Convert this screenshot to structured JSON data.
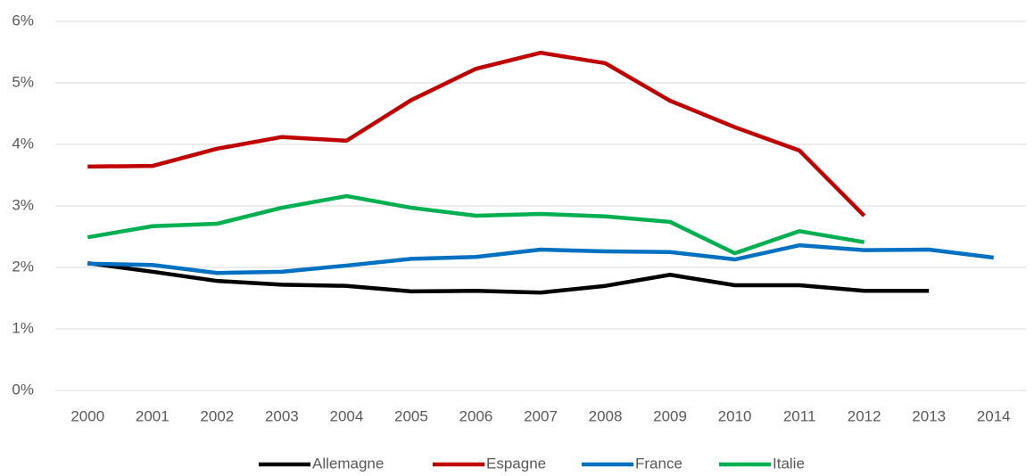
{
  "chart_data": {
    "type": "line",
    "categories": [
      "2000",
      "2001",
      "2002",
      "2003",
      "2004",
      "2005",
      "2006",
      "2007",
      "2008",
      "2009",
      "2010",
      "2011",
      "2012",
      "2013",
      "2014"
    ],
    "series": [
      {
        "name": "Allemagne",
        "color": "#000000",
        "values": [
          2.07,
          1.93,
          1.78,
          1.72,
          1.7,
          1.61,
          1.62,
          1.59,
          1.7,
          1.88,
          1.71,
          1.71,
          1.62,
          1.62,
          null
        ]
      },
      {
        "name": "Espagne",
        "color": "#c00000",
        "values": [
          3.64,
          3.65,
          3.93,
          4.12,
          4.06,
          4.72,
          5.23,
          5.49,
          5.32,
          4.71,
          4.28,
          3.9,
          2.84,
          null,
          null
        ]
      },
      {
        "name": "France",
        "color": "#0070c0",
        "values": [
          2.06,
          2.04,
          1.91,
          1.93,
          2.03,
          2.14,
          2.17,
          2.29,
          2.26,
          2.25,
          2.13,
          2.36,
          2.28,
          2.29,
          2.16
        ]
      },
      {
        "name": "Italie",
        "color": "#00b050",
        "values": [
          2.49,
          2.67,
          2.71,
          2.97,
          3.16,
          2.97,
          2.84,
          2.87,
          2.83,
          2.74,
          2.23,
          2.59,
          2.41,
          null,
          null
        ]
      }
    ],
    "ylim": [
      0,
      6
    ],
    "yticks": [
      {
        "value": 0,
        "label": "0%"
      },
      {
        "value": 1,
        "label": "1%"
      },
      {
        "value": 2,
        "label": "2%"
      },
      {
        "value": 3,
        "label": "3%"
      },
      {
        "value": 4,
        "label": "4%"
      },
      {
        "value": 5,
        "label": "5%"
      },
      {
        "value": 6,
        "label": "6%"
      }
    ],
    "grid": true,
    "legend": "bottom"
  }
}
